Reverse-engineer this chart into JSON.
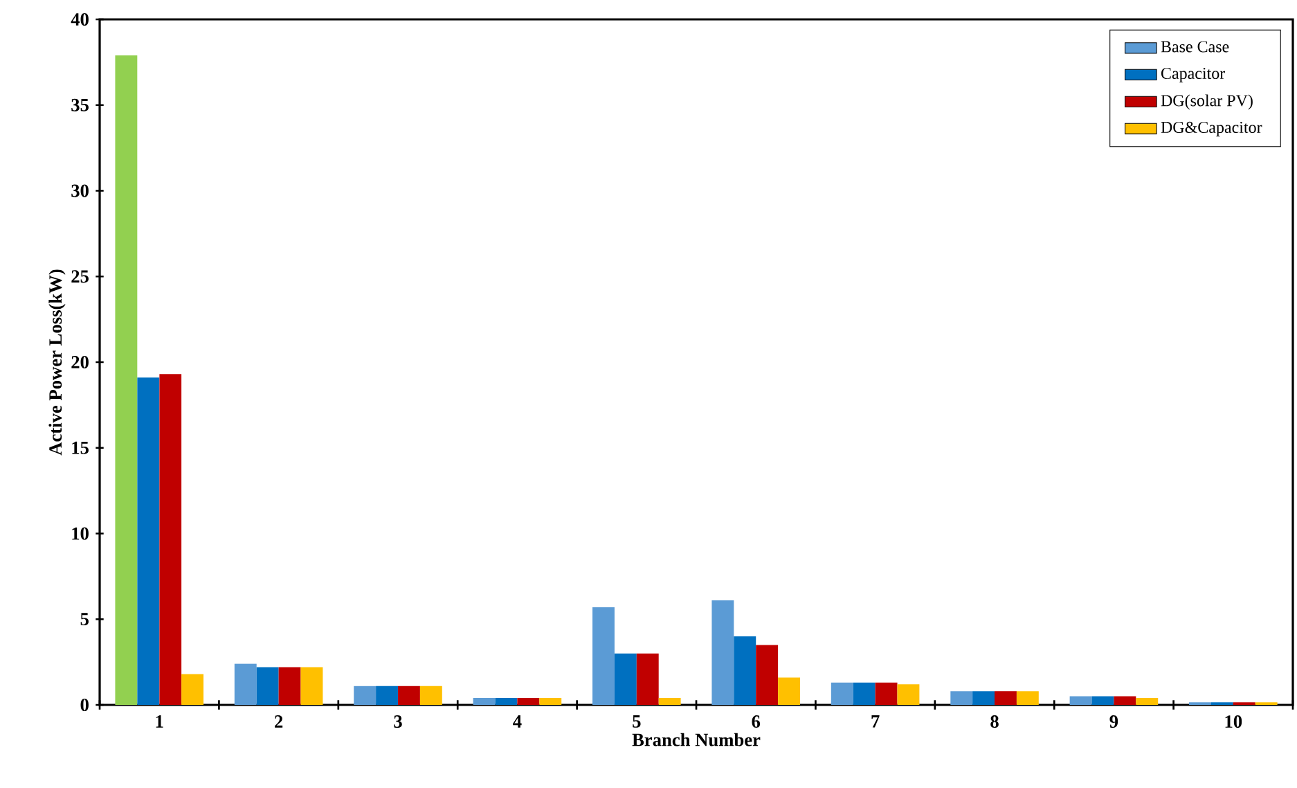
{
  "chart_data": {
    "type": "bar",
    "xlabel": "Branch Number",
    "ylabel": "Active Power Loss(kW)",
    "categories": [
      "1",
      "2",
      "3",
      "4",
      "5",
      "6",
      "7",
      "8",
      "9",
      "10"
    ],
    "series": [
      {
        "name": "Base Case",
        "color": "#5b9bd5",
        "colors": [
          "#92d050",
          "#5b9bd5",
          "#5b9bd5",
          "#5b9bd5",
          "#5b9bd5",
          "#5b9bd5",
          "#5b9bd5",
          "#5b9bd5",
          "#5b9bd5",
          "#5b9bd5"
        ],
        "values": [
          37.9,
          2.4,
          1.1,
          0.4,
          5.7,
          6.1,
          1.3,
          0.8,
          0.5,
          0.15
        ]
      },
      {
        "name": "Capacitor",
        "color": "#0070c0",
        "values": [
          19.1,
          2.2,
          1.1,
          0.4,
          3.0,
          4.0,
          1.3,
          0.8,
          0.5,
          0.15
        ]
      },
      {
        "name": "DG(solar PV)",
        "color": "#c00000",
        "values": [
          19.3,
          2.2,
          1.1,
          0.4,
          3.0,
          3.5,
          1.3,
          0.8,
          0.5,
          0.15
        ]
      },
      {
        "name": "DG&Capacitor",
        "color": "#ffc000",
        "values": [
          1.8,
          2.2,
          1.1,
          0.4,
          0.4,
          1.6,
          1.2,
          0.8,
          0.4,
          0.15
        ]
      }
    ],
    "ylim": [
      0,
      40
    ],
    "yticks": [
      0,
      5,
      10,
      15,
      20,
      25,
      30,
      35,
      40
    ],
    "grid": false,
    "legend": "top right"
  }
}
